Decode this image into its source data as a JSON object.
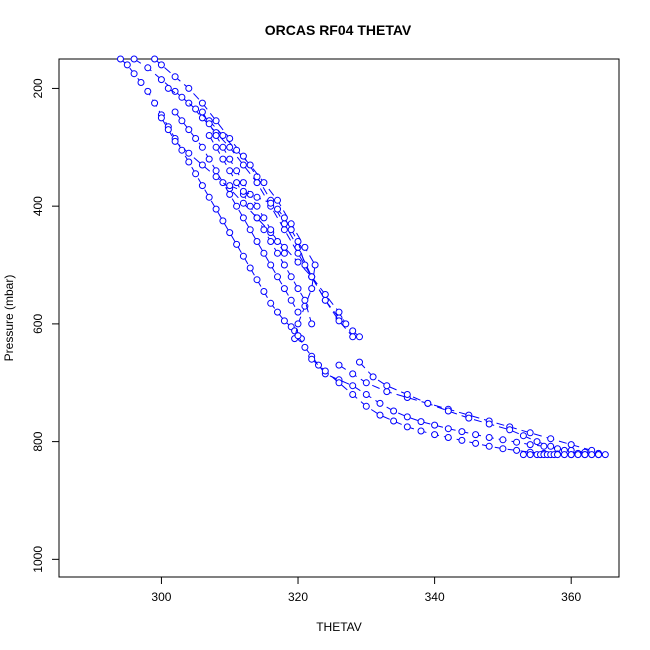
{
  "chart_data": {
    "type": "line",
    "title": "ORCAS RF04 THETAV",
    "xlabel": "THETAV",
    "ylabel": "Pressure (mbar)",
    "xlim": [
      285,
      367
    ],
    "ylim": [
      1030,
      150
    ],
    "y_reversed": true,
    "xticks": [
      300,
      320,
      340,
      360
    ],
    "yticks": [
      200,
      400,
      600,
      800,
      1000
    ],
    "grid": false,
    "legend": "none",
    "marker": "open-circle",
    "line_style": "dashed",
    "color": "#0000ff",
    "series": [
      {
        "x": [
          294,
          295,
          296,
          297,
          298,
          299,
          300,
          301,
          302,
          303,
          304,
          305,
          306,
          307,
          308,
          309,
          310,
          311,
          312,
          313,
          314,
          315,
          316,
          317,
          318,
          319,
          319.5,
          320,
          320.5
        ],
        "y": [
          150,
          160,
          175,
          190,
          205,
          225,
          245,
          265,
          285,
          305,
          325,
          345,
          365,
          385,
          405,
          425,
          445,
          465,
          485,
          505,
          525,
          545,
          565,
          580,
          595,
          605,
          612,
          620,
          625
        ]
      },
      {
        "x": [
          296,
          298,
          300,
          302,
          304,
          306,
          308,
          310,
          312,
          314,
          316,
          318,
          320,
          322,
          324,
          326,
          328,
          329
        ],
        "y": [
          150,
          165,
          185,
          205,
          225,
          250,
          275,
          300,
          330,
          360,
          400,
          440,
          480,
          520,
          560,
          590,
          612,
          622
        ]
      },
      {
        "x": [
          299,
          300,
          302,
          304,
          306,
          308,
          310,
          312,
          314,
          316,
          318,
          320,
          322,
          324,
          326,
          328
        ],
        "y": [
          150,
          160,
          180,
          200,
          225,
          255,
          285,
          315,
          350,
          390,
          430,
          470,
          520,
          560,
          595,
          622
        ]
      },
      {
        "x": [
          301,
          303,
          305,
          307,
          309,
          311,
          313,
          315,
          317,
          319,
          321,
          322.5,
          322,
          321,
          320,
          319.5
        ],
        "y": [
          200,
          215,
          235,
          255,
          280,
          305,
          330,
          360,
          390,
          430,
          470,
          500,
          540,
          570,
          600,
          625
        ]
      },
      {
        "x": [
          302,
          303,
          304,
          305,
          306,
          307,
          308,
          309,
          310,
          311,
          312,
          313,
          314,
          315,
          316,
          317,
          318,
          319,
          320
        ],
        "y": [
          240,
          255,
          270,
          285,
          300,
          320,
          340,
          360,
          380,
          400,
          420,
          440,
          460,
          480,
          500,
          520,
          540,
          560,
          580
        ]
      },
      {
        "x": [
          300,
          301,
          302,
          304,
          306,
          308,
          310,
          312,
          314,
          316,
          318,
          320,
          322,
          324,
          326,
          327
        ],
        "y": [
          250,
          270,
          290,
          310,
          330,
          350,
          370,
          395,
          420,
          445,
          470,
          495,
          520,
          550,
          580,
          600
        ]
      },
      {
        "x": [
          306,
          307,
          308,
          309,
          310,
          311,
          312,
          313,
          314,
          315,
          316,
          317,
          318
        ],
        "y": [
          240,
          260,
          280,
          300,
          320,
          340,
          360,
          380,
          400,
          420,
          440,
          460,
          480
        ]
      },
      {
        "x": [
          307,
          308,
          309,
          310,
          311,
          312,
          313,
          314,
          315,
          316,
          317,
          318,
          319,
          320,
          321,
          322
        ],
        "y": [
          280,
          300,
          320,
          340,
          360,
          380,
          400,
          420,
          440,
          460,
          480,
          500,
          520,
          540,
          560,
          600
        ]
      },
      {
        "x": [
          310,
          312,
          314,
          316,
          317,
          318,
          319,
          320,
          321
        ],
        "y": [
          365,
          375,
          385,
          395,
          405,
          420,
          440,
          460,
          500
        ]
      },
      {
        "x": [
          320,
          321,
          322,
          323,
          324,
          326,
          328,
          330,
          332,
          334,
          336,
          338,
          340,
          342,
          344,
          346,
          348,
          350,
          352,
          354,
          356,
          358,
          360,
          362,
          364,
          365
        ],
        "y": [
          620,
          640,
          655,
          670,
          685,
          695,
          705,
          720,
          735,
          748,
          758,
          766,
          772,
          778,
          783,
          788,
          793,
          797,
          801,
          805,
          808,
          812,
          815,
          818,
          820,
          822
        ]
      },
      {
        "x": [
          322,
          324,
          326,
          328,
          330,
          332,
          334,
          336,
          338,
          340,
          342,
          344,
          346,
          348,
          350,
          352,
          354,
          356,
          358,
          360,
          362,
          364
        ],
        "y": [
          660,
          680,
          700,
          720,
          740,
          755,
          765,
          775,
          782,
          788,
          793,
          798,
          803,
          808,
          812,
          815,
          818,
          820,
          821,
          822,
          822,
          822
        ]
      },
      {
        "x": [
          326,
          328,
          330,
          333,
          336,
          339,
          342,
          345,
          348,
          351,
          354,
          357,
          360,
          363
        ],
        "y": [
          670,
          685,
          700,
          715,
          725,
          735,
          745,
          755,
          765,
          775,
          785,
          795,
          805,
          815
        ]
      },
      {
        "x": [
          329,
          331,
          333,
          336,
          339,
          342,
          345,
          348,
          351,
          353,
          355,
          357,
          359,
          361
        ],
        "y": [
          665,
          690,
          705,
          720,
          735,
          748,
          760,
          770,
          780,
          790,
          800,
          808,
          815,
          820
        ]
      },
      {
        "x": [
          353,
          354,
          355,
          355.5,
          356,
          356.5,
          357,
          357.5,
          358,
          359,
          360,
          361,
          362,
          363,
          364
        ],
        "y": [
          822,
          822,
          822,
          822,
          822,
          822,
          822,
          822,
          822,
          822,
          822,
          822,
          822,
          822,
          822
        ]
      }
    ]
  }
}
